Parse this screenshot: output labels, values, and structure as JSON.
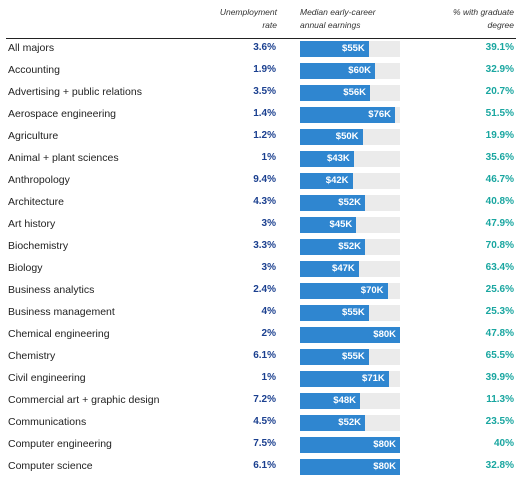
{
  "headers": {
    "unemployment": [
      "Unemployment",
      "rate"
    ],
    "earnings": [
      "Median early-career",
      "annual earnings"
    ],
    "graduate": [
      "% with graduate",
      "degree"
    ]
  },
  "colors": {
    "bar": "#2f86d0",
    "track": "#ebebeb",
    "unemployment_text": "#1a3f8f",
    "graduate_text": "#19a6a0"
  },
  "chart_data": {
    "type": "table",
    "columns": [
      "",
      "Unemployment rate",
      "Median early-career annual earnings",
      "% with graduate degree"
    ],
    "earnings_max": 80,
    "rows": [
      {
        "major": "All majors",
        "unemployment": "3.6%",
        "earnings": 55,
        "earnings_label": "$55K",
        "graduate": "39.1%"
      },
      {
        "major": "Accounting",
        "unemployment": "1.9%",
        "earnings": 60,
        "earnings_label": "$60K",
        "graduate": "32.9%"
      },
      {
        "major": "Advertising + public relations",
        "unemployment": "3.5%",
        "earnings": 56,
        "earnings_label": "$56K",
        "graduate": "20.7%"
      },
      {
        "major": "Aerospace engineering",
        "unemployment": "1.4%",
        "earnings": 76,
        "earnings_label": "$76K",
        "graduate": "51.5%"
      },
      {
        "major": "Agriculture",
        "unemployment": "1.2%",
        "earnings": 50,
        "earnings_label": "$50K",
        "graduate": "19.9%"
      },
      {
        "major": "Animal + plant sciences",
        "unemployment": "1%",
        "earnings": 43,
        "earnings_label": "$43K",
        "graduate": "35.6%"
      },
      {
        "major": "Anthropology",
        "unemployment": "9.4%",
        "earnings": 42,
        "earnings_label": "$42K",
        "graduate": "46.7%"
      },
      {
        "major": "Architecture",
        "unemployment": "4.3%",
        "earnings": 52,
        "earnings_label": "$52K",
        "graduate": "40.8%"
      },
      {
        "major": "Art history",
        "unemployment": "3%",
        "earnings": 45,
        "earnings_label": "$45K",
        "graduate": "47.9%"
      },
      {
        "major": "Biochemistry",
        "unemployment": "3.3%",
        "earnings": 52,
        "earnings_label": "$52K",
        "graduate": "70.8%"
      },
      {
        "major": "Biology",
        "unemployment": "3%",
        "earnings": 47,
        "earnings_label": "$47K",
        "graduate": "63.4%"
      },
      {
        "major": "Business analytics",
        "unemployment": "2.4%",
        "earnings": 70,
        "earnings_label": "$70K",
        "graduate": "25.6%"
      },
      {
        "major": "Business management",
        "unemployment": "4%",
        "earnings": 55,
        "earnings_label": "$55K",
        "graduate": "25.3%"
      },
      {
        "major": "Chemical engineering",
        "unemployment": "2%",
        "earnings": 80,
        "earnings_label": "$80K",
        "graduate": "47.8%"
      },
      {
        "major": "Chemistry",
        "unemployment": "6.1%",
        "earnings": 55,
        "earnings_label": "$55K",
        "graduate": "65.5%"
      },
      {
        "major": "Civil engineering",
        "unemployment": "1%",
        "earnings": 71,
        "earnings_label": "$71K",
        "graduate": "39.9%"
      },
      {
        "major": "Commercial art + graphic design",
        "unemployment": "7.2%",
        "earnings": 48,
        "earnings_label": "$48K",
        "graduate": "11.3%"
      },
      {
        "major": "Communications",
        "unemployment": "4.5%",
        "earnings": 52,
        "earnings_label": "$52K",
        "graduate": "23.5%"
      },
      {
        "major": "Computer engineering",
        "unemployment": "7.5%",
        "earnings": 80,
        "earnings_label": "$80K",
        "graduate": "40%"
      },
      {
        "major": "Computer science",
        "unemployment": "6.1%",
        "earnings": 80,
        "earnings_label": "$80K",
        "graduate": "32.8%"
      }
    ]
  }
}
